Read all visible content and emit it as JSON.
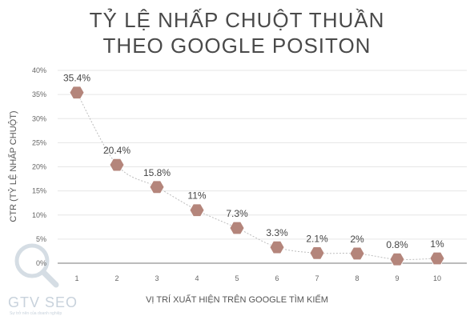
{
  "chart_data": {
    "type": "scatter",
    "title_lines": [
      "TỶ LỆ NHẤP CHUỘT THUẦN",
      "THEO GOOGLE POSITON"
    ],
    "xlabel": "VỊ TRÍ XUẤT HIỆN TRÊN GOOGLE TÌM KIẾM",
    "ylabel": "CTR (TỶ LỆ NHẤP CHUỘT)",
    "x": [
      1,
      2,
      3,
      4,
      5,
      6,
      7,
      8,
      9,
      10
    ],
    "values": [
      35.4,
      20.4,
      15.8,
      11,
      7.3,
      3.3,
      2.1,
      2,
      0.8,
      1
    ],
    "data_labels": [
      "35.4%",
      "20.4%",
      "15.8%",
      "11%",
      "7.3%",
      "3.3%",
      "2.1%",
      "2%",
      "0.8%",
      "1%"
    ],
    "x_ticks": [
      "1",
      "2",
      "3",
      "4",
      "5",
      "6",
      "7",
      "8",
      "9",
      "10"
    ],
    "y_ticks": [
      "0%",
      "5%",
      "10%",
      "15%",
      "20%",
      "25%",
      "30%",
      "35%",
      "40%"
    ],
    "ylim": [
      0,
      40
    ],
    "grid": true,
    "trend_line": "dotted",
    "marker_shape": "hexagon",
    "marker_color": "#b4857b",
    "curve_color": "#bdbdbd"
  },
  "logo": {
    "name": "GTV SEO",
    "tagline": "Sự trở nên của doanh nghiệp"
  }
}
